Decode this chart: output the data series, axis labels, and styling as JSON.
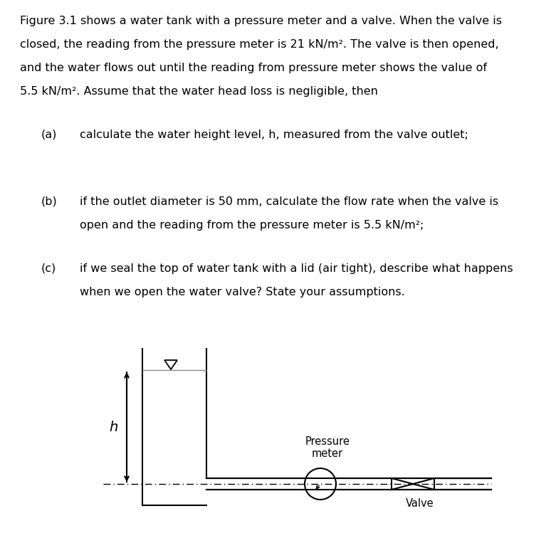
{
  "background_color": "#ffffff",
  "text_color": "#000000",
  "fig_width": 7.81,
  "fig_height": 7.63,
  "line_color": "#000000",
  "para_lines": [
    "Figure 3.1 shows a water tank with a pressure meter and a valve. When the valve is",
    "closed, the reading from the pressure meter is 21 kN/m². The valve is then opened,",
    "and the water flows out until the reading from pressure meter shows the value of",
    "5.5 kN/m². Assume that the water head loss is negligible, then"
  ],
  "item_a_label": "(a)",
  "item_a_text": "calculate the water height level, h, measured from the valve outlet;",
  "item_b_label": "(b)",
  "item_b_line1": "if the outlet diameter is 50 mm, calculate the flow rate when the valve is",
  "item_b_line2": "open and the reading from the pressure meter is 5.5 kN/m²;",
  "item_c_label": "(c)",
  "item_c_line1": "if we seal the top of water tank with a lid (air tight), describe what happens",
  "item_c_line2": "when we open the water valve? State your assumptions.",
  "label_h": "h",
  "label_pressure": "Pressure\nmeter",
  "label_valve": "Valve"
}
